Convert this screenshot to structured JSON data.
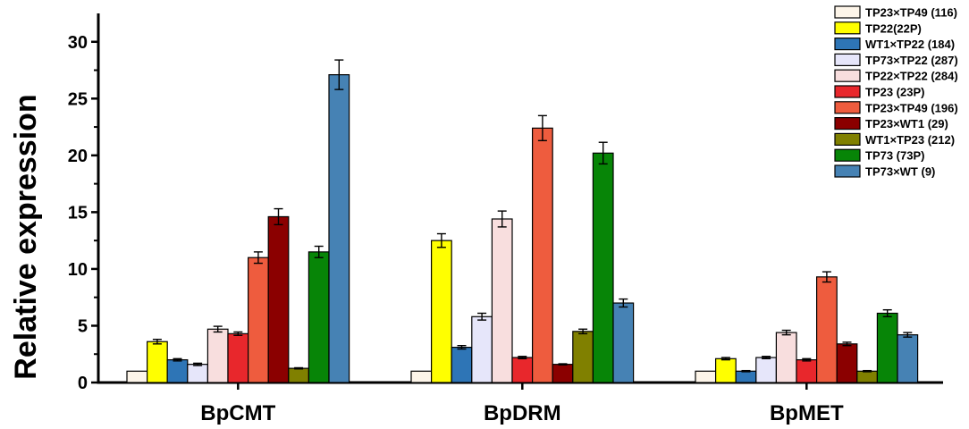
{
  "chart_data": {
    "type": "bar",
    "title": "",
    "xlabel": "",
    "ylabel": "Relative expression",
    "ylim": [
      0,
      32.5
    ],
    "yticks": [
      0,
      5,
      10,
      15,
      20,
      25,
      30
    ],
    "grid": false,
    "legend_position": "top-right",
    "categories": [
      "BpCMT",
      "BpDRM",
      "BpMET"
    ],
    "series": [
      {
        "name": "TP23×TP49 (116)",
        "color": "#fdf5e9",
        "values": [
          1.0,
          1.0,
          1.0
        ],
        "errors": [
          0,
          0,
          0
        ]
      },
      {
        "name": "TP22(22P)",
        "color": "#ffff00",
        "values": [
          3.6,
          12.5,
          2.1
        ],
        "errors": [
          0.2,
          0.6,
          0.1
        ]
      },
      {
        "name": "WT1×TP22 (184)",
        "color": "#2e75b6",
        "values": [
          2.0,
          3.1,
          1.0
        ],
        "errors": [
          0.1,
          0.15,
          0.05
        ]
      },
      {
        "name": "TP73×TP22 (287)",
        "color": "#e6e6fa",
        "values": [
          1.6,
          5.8,
          2.2
        ],
        "errors": [
          0.1,
          0.3,
          0.1
        ]
      },
      {
        "name": "TP22×TP22 (284)",
        "color": "#f8dede",
        "values": [
          4.7,
          14.4,
          4.4
        ],
        "errors": [
          0.25,
          0.7,
          0.2
        ]
      },
      {
        "name": "TP23 (23P)",
        "color": "#e8272c",
        "values": [
          4.3,
          2.2,
          2.0
        ],
        "errors": [
          0.15,
          0.1,
          0.1
        ]
      },
      {
        "name": "TP23×TP49 (196)",
        "color": "#ee5c3e",
        "values": [
          11.0,
          22.4,
          9.3
        ],
        "errors": [
          0.5,
          1.1,
          0.45
        ]
      },
      {
        "name": "TP23×WT1 (29)",
        "color": "#8b0000",
        "values": [
          14.6,
          1.6,
          3.4
        ],
        "errors": [
          0.7,
          0.05,
          0.15
        ]
      },
      {
        "name": " WT1×TP23 (212)",
        "color": "#808000",
        "values": [
          1.25,
          4.5,
          1.0
        ],
        "errors": [
          0.05,
          0.2,
          0.05
        ]
      },
      {
        "name": "TP73 (73P)",
        "color": "#078507",
        "values": [
          11.5,
          20.2,
          6.1
        ],
        "errors": [
          0.5,
          0.95,
          0.3
        ]
      },
      {
        "name": "TP73×WT (9)",
        "color": "#4682b4",
        "values": [
          27.1,
          7.0,
          4.2
        ],
        "errors": [
          1.3,
          0.35,
          0.2
        ]
      }
    ]
  }
}
